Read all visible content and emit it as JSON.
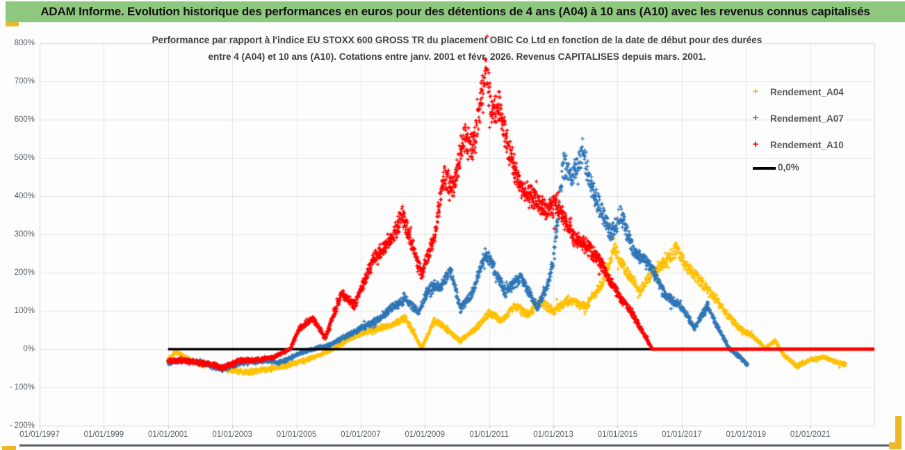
{
  "title_bar": {
    "text": "ADAM Informe. Evolution historique des performances en euros pour des détentions de 4 ans (A04) à 10 ans (A10) avec les revenus connus capitalisés",
    "bg_color": "#8dc87e"
  },
  "accents": {
    "corner_marker_color": "#edb827",
    "bottom_rule_color": "#59606b"
  },
  "chart_data": {
    "type": "scatter",
    "title": "Performance par rapport à l'indice EU STOXX 600 GROSS TR  du placement OBIC Co Ltd en fonction de la date de début pour des durées",
    "title_line2": "entre 4 (A04) et 10 ans (A10). Cotations entre janv. 2001 et févr. 2026. Revenus CAPITALISES depuis mars. 2001.",
    "x_tick_labels": [
      "01/01/1997",
      "01/01/1999",
      "01/01/2001",
      "01/01/2003",
      "01/01/2005",
      "01/01/2007",
      "01/01/2009",
      "01/01/2011",
      "01/01/2013",
      "01/01/2015",
      "01/01/2017",
      "01/01/2019",
      "01/01/2021"
    ],
    "x_tick_years": [
      1997,
      1999,
      2001,
      2003,
      2005,
      2007,
      2009,
      2011,
      2013,
      2015,
      2017,
      2019,
      2021
    ],
    "x_axis_range_years": [
      1997,
      2023
    ],
    "y_tick_labels": [
      "800%",
      "700%",
      "600%",
      "500%",
      "400%",
      "300%",
      "200%",
      "100%",
      "0%",
      "- 100%",
      "- 200%"
    ],
    "y_range_pct": [
      -200,
      800
    ],
    "grid_color": "#e4e4e4",
    "plot_border_color": "#d9d9d9",
    "axis_text_color": "#565d66",
    "legend_position": "right",
    "zero_line": {
      "label": "0,0%",
      "value_pct": 0,
      "start_year": 2001.0,
      "end_year": 2023.0,
      "color": "#000000"
    },
    "series": [
      {
        "name": "Rendement_A04",
        "color": "#FFC000",
        "marker": "+",
        "points_start_year": 2001.0,
        "points_end_year": 2022.1,
        "anchors_year_pct": [
          [
            2001.0,
            -25
          ],
          [
            2001.25,
            -6
          ],
          [
            2001.8,
            -35
          ],
          [
            2002.5,
            -45
          ],
          [
            2003.0,
            -55
          ],
          [
            2003.6,
            -60
          ],
          [
            2004.2,
            -50
          ],
          [
            2004.8,
            -40
          ],
          [
            2005.4,
            -25
          ],
          [
            2006.1,
            -2
          ],
          [
            2006.6,
            25
          ],
          [
            2007.0,
            40
          ],
          [
            2007.7,
            58
          ],
          [
            2008.0,
            65
          ],
          [
            2008.4,
            82
          ],
          [
            2008.9,
            3
          ],
          [
            2009.3,
            76
          ],
          [
            2009.7,
            50
          ],
          [
            2010.1,
            22
          ],
          [
            2010.6,
            55
          ],
          [
            2011.0,
            95
          ],
          [
            2011.4,
            75
          ],
          [
            2011.8,
            115
          ],
          [
            2012.2,
            90
          ],
          [
            2012.6,
            125
          ],
          [
            2013.0,
            100
          ],
          [
            2013.5,
            130
          ],
          [
            2014.0,
            110
          ],
          [
            2014.5,
            170
          ],
          [
            2014.9,
            262
          ],
          [
            2015.3,
            200
          ],
          [
            2015.7,
            152
          ],
          [
            2016.1,
            200
          ],
          [
            2016.5,
            230
          ],
          [
            2016.85,
            262
          ],
          [
            2017.2,
            210
          ],
          [
            2017.6,
            178
          ],
          [
            2018.0,
            140
          ],
          [
            2018.4,
            92
          ],
          [
            2018.8,
            55
          ],
          [
            2019.2,
            35
          ],
          [
            2019.6,
            2
          ],
          [
            2019.9,
            22
          ],
          [
            2020.2,
            -18
          ],
          [
            2020.6,
            -45
          ],
          [
            2021.0,
            -27
          ],
          [
            2021.4,
            -20
          ],
          [
            2021.7,
            -30
          ],
          [
            2022.1,
            -40
          ]
        ]
      },
      {
        "name": "Rendement_A07",
        "color": "#2E75B6",
        "marker": "+",
        "points_start_year": 2001.0,
        "points_end_year": 2019.05,
        "anchors_year_pct": [
          [
            2001.0,
            -35
          ],
          [
            2001.5,
            -30
          ],
          [
            2002.0,
            -35
          ],
          [
            2002.7,
            -52
          ],
          [
            2003.3,
            -35
          ],
          [
            2004.0,
            -30
          ],
          [
            2004.5,
            -35
          ],
          [
            2005.0,
            -15
          ],
          [
            2005.4,
            -2
          ],
          [
            2006.0,
            10
          ],
          [
            2006.8,
            45
          ],
          [
            2007.5,
            75
          ],
          [
            2008.0,
            110
          ],
          [
            2008.4,
            130
          ],
          [
            2008.8,
            95
          ],
          [
            2009.1,
            155
          ],
          [
            2009.5,
            165
          ],
          [
            2009.8,
            205
          ],
          [
            2010.1,
            105
          ],
          [
            2010.5,
            150
          ],
          [
            2010.9,
            255
          ],
          [
            2011.2,
            200
          ],
          [
            2011.5,
            148
          ],
          [
            2012.0,
            190
          ],
          [
            2012.5,
            108
          ],
          [
            2012.8,
            160
          ],
          [
            2013.0,
            230
          ],
          [
            2013.3,
            480
          ],
          [
            2013.6,
            445
          ],
          [
            2013.9,
            520
          ],
          [
            2014.2,
            420
          ],
          [
            2014.5,
            360
          ],
          [
            2014.8,
            300
          ],
          [
            2015.1,
            350
          ],
          [
            2015.5,
            258
          ],
          [
            2016.0,
            220
          ],
          [
            2016.5,
            140
          ],
          [
            2017.0,
            110
          ],
          [
            2017.4,
            55
          ],
          [
            2017.8,
            115
          ],
          [
            2018.1,
            60
          ],
          [
            2018.5,
            0
          ],
          [
            2018.8,
            -20
          ],
          [
            2019.05,
            -40
          ]
        ]
      },
      {
        "name": "Rendement_A10",
        "color": "#FE0000",
        "marker": "+",
        "points_start_year": 2001.0,
        "points_end_year": 2016.08,
        "flat_zero_segment_years": [
          2016.08,
          2023.0
        ],
        "anchors_year_pct": [
          [
            2001.0,
            -30
          ],
          [
            2001.5,
            -30
          ],
          [
            2002.0,
            -35
          ],
          [
            2002.7,
            -48
          ],
          [
            2003.2,
            -30
          ],
          [
            2003.8,
            -28
          ],
          [
            2004.3,
            -20
          ],
          [
            2004.8,
            0
          ],
          [
            2005.1,
            55
          ],
          [
            2005.5,
            80
          ],
          [
            2005.9,
            30
          ],
          [
            2006.4,
            145
          ],
          [
            2006.8,
            115
          ],
          [
            2007.4,
            235
          ],
          [
            2008.0,
            295
          ],
          [
            2008.3,
            350
          ],
          [
            2008.9,
            195
          ],
          [
            2009.3,
            300
          ],
          [
            2009.6,
            455
          ],
          [
            2009.9,
            420
          ],
          [
            2010.2,
            555
          ],
          [
            2010.5,
            530
          ],
          [
            2010.9,
            728
          ],
          [
            2011.1,
            620
          ],
          [
            2011.35,
            630
          ],
          [
            2011.6,
            520
          ],
          [
            2012.0,
            425
          ],
          [
            2012.4,
            390
          ],
          [
            2012.8,
            360
          ],
          [
            2013.1,
            380
          ],
          [
            2013.6,
            300
          ],
          [
            2014.0,
            270
          ],
          [
            2014.4,
            235
          ],
          [
            2015.0,
            145
          ],
          [
            2015.5,
            88
          ],
          [
            2016.08,
            0
          ]
        ]
      }
    ]
  }
}
